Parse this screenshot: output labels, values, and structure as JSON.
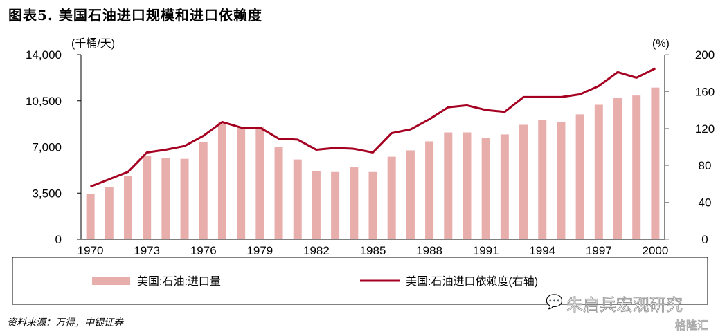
{
  "title": "图表5. 美国石油进口规模和进口依赖度",
  "source": "资料来源：万得，中银证券",
  "watermark": "朱启兵宏观研究",
  "watermark2": "格隆汇",
  "chart_data": {
    "type": "bar+line",
    "left_unit": "(千桶/天)",
    "right_unit": "(%)",
    "ylim_left": [
      0,
      14000
    ],
    "ylim_right": [
      0,
      200
    ],
    "left_ticks": [
      "0",
      "3,500",
      "7,000",
      "10,500",
      "14,000"
    ],
    "right_ticks": [
      "0",
      "40",
      "80",
      "120",
      "160",
      "200"
    ],
    "x_tick_labels": [
      "1970",
      "1973",
      "1976",
      "1979",
      "1982",
      "1985",
      "1988",
      "1991",
      "1994",
      "1997",
      "2000"
    ],
    "categories": [
      1970,
      1971,
      1972,
      1973,
      1974,
      1975,
      1976,
      1977,
      1978,
      1979,
      1980,
      1981,
      1982,
      1983,
      1984,
      1985,
      1986,
      1987,
      1988,
      1989,
      1990,
      1991,
      1992,
      1993,
      1994,
      1995,
      1996,
      1997,
      1998,
      1999,
      2000
    ],
    "series": [
      {
        "name": "美国:石油:进口量",
        "type": "bar",
        "axis": "left",
        "color": "#E8AEAC",
        "values": [
          3420,
          3950,
          4790,
          6300,
          6160,
          6100,
          7370,
          8840,
          8470,
          8500,
          6990,
          6050,
          5160,
          5100,
          5450,
          5100,
          6260,
          6740,
          7420,
          8100,
          8100,
          7680,
          7950,
          8680,
          9050,
          8890,
          9470,
          10200,
          10700,
          10900,
          11500
        ]
      },
      {
        "name": "美国:石油进口依赖度(右轴)",
        "type": "line",
        "axis": "right",
        "color": "#A50021",
        "values": [
          57,
          65,
          73,
          94,
          97,
          101,
          112,
          127,
          121,
          121,
          109,
          108,
          97,
          99,
          98,
          94,
          115,
          119,
          130,
          143,
          145,
          140,
          138,
          154,
          154,
          154,
          157,
          166,
          181,
          175,
          185
        ]
      }
    ],
    "legend": "bottom"
  }
}
